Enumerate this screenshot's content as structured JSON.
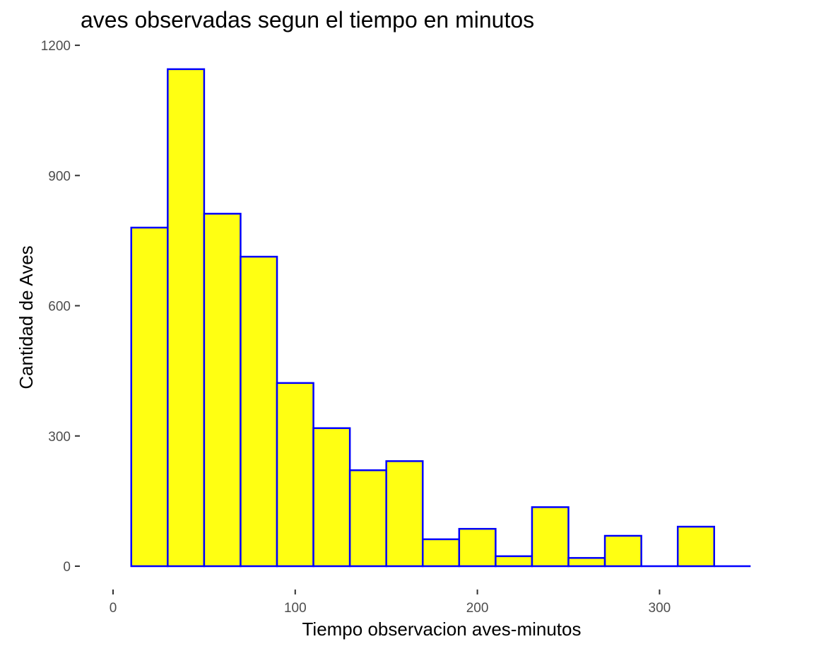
{
  "chart_data": {
    "type": "bar",
    "title": "aves observadas segun el tiempo en minutos",
    "xlabel": "Tiempo observacion aves-minutos",
    "ylabel": "Cantidad de Aves",
    "xlim": [
      0,
      350
    ],
    "ylim": [
      0,
      1200
    ],
    "x_ticks": [
      0,
      100,
      200,
      300
    ],
    "y_ticks": [
      0,
      300,
      600,
      900,
      1200
    ],
    "bin_width": 20,
    "bins": [
      {
        "start": 10,
        "end": 30,
        "count": 780
      },
      {
        "start": 30,
        "end": 50,
        "count": 1145
      },
      {
        "start": 50,
        "end": 70,
        "count": 812
      },
      {
        "start": 70,
        "end": 90,
        "count": 713
      },
      {
        "start": 90,
        "end": 110,
        "count": 422
      },
      {
        "start": 110,
        "end": 130,
        "count": 318
      },
      {
        "start": 130,
        "end": 150,
        "count": 221
      },
      {
        "start": 150,
        "end": 170,
        "count": 242
      },
      {
        "start": 170,
        "end": 190,
        "count": 62
      },
      {
        "start": 190,
        "end": 210,
        "count": 86
      },
      {
        "start": 210,
        "end": 230,
        "count": 23
      },
      {
        "start": 230,
        "end": 250,
        "count": 136
      },
      {
        "start": 250,
        "end": 270,
        "count": 19
      },
      {
        "start": 270,
        "end": 290,
        "count": 70
      },
      {
        "start": 290,
        "end": 310,
        "count": 0
      },
      {
        "start": 310,
        "end": 330,
        "count": 91
      },
      {
        "start": 330,
        "end": 350,
        "count": 0
      }
    ],
    "fill_color": "#ffff12",
    "outline_color": "#0000ff",
    "grid": false,
    "background": "#ffffff"
  }
}
